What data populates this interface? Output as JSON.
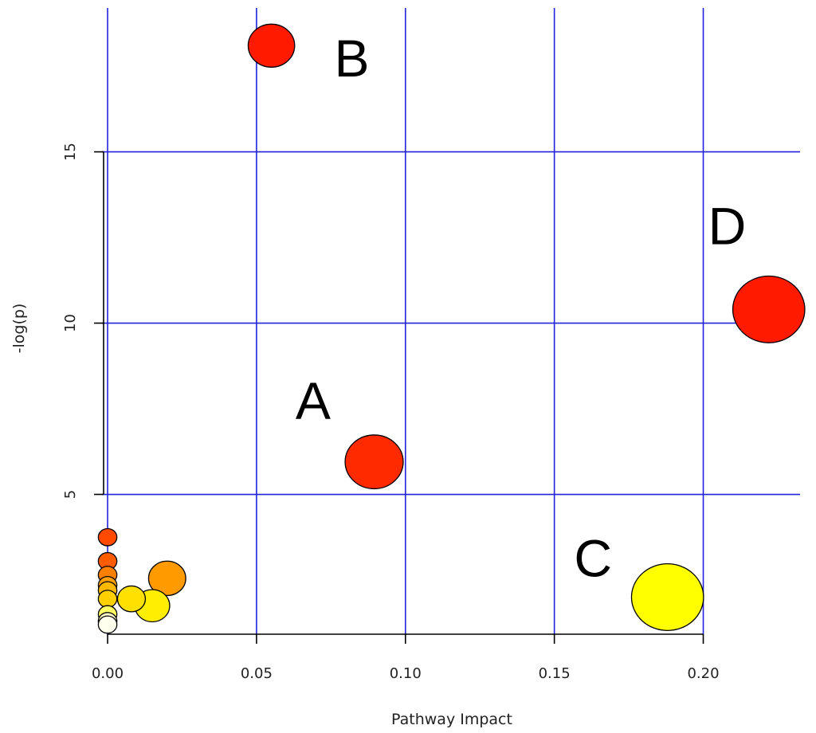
{
  "chart_data": {
    "type": "scatter",
    "title": "",
    "xlabel": "Pathway Impact",
    "ylabel": "-log(p)",
    "xlim": [
      -0.0075,
      0.2325
    ],
    "ylim": [
      0.5,
      19.2
    ],
    "x_ticks": [
      {
        "value": 0.0,
        "label": "0.00"
      },
      {
        "value": 0.05,
        "label": "0.05"
      },
      {
        "value": 0.1,
        "label": "0.10"
      },
      {
        "value": 0.15,
        "label": "0.15"
      },
      {
        "value": 0.2,
        "label": "0.20"
      }
    ],
    "y_ticks": [
      {
        "value": 5,
        "label": "5"
      },
      {
        "value": 10,
        "label": "10"
      },
      {
        "value": 15,
        "label": "15"
      }
    ],
    "grid": true,
    "grid_color": "#2222dd",
    "points": [
      {
        "x": 0.055,
        "y": 18.1,
        "size": 1.0,
        "color": "#ff1a00"
      },
      {
        "x": 0.222,
        "y": 10.4,
        "size": 1.55,
        "color": "#ff1a00"
      },
      {
        "x": 0.0895,
        "y": 5.95,
        "size": 1.25,
        "color": "#ff2a00"
      },
      {
        "x": 0.188,
        "y": 2.0,
        "size": 1.55,
        "color": "#ffff00"
      },
      {
        "x": 0.02,
        "y": 2.55,
        "size": 0.8,
        "color": "#ff9a00"
      },
      {
        "x": 0.015,
        "y": 1.75,
        "size": 0.75,
        "color": "#ffee00"
      },
      {
        "x": 0.008,
        "y": 1.95,
        "size": 0.6,
        "color": "#ffe000"
      },
      {
        "x": 0.0,
        "y": 3.75,
        "size": 0.4,
        "color": "#ff4a00"
      },
      {
        "x": 0.0,
        "y": 3.05,
        "size": 0.4,
        "color": "#ff5c00"
      },
      {
        "x": 0.0,
        "y": 2.65,
        "size": 0.4,
        "color": "#ff8000"
      },
      {
        "x": 0.0,
        "y": 2.35,
        "size": 0.4,
        "color": "#ffa000"
      },
      {
        "x": 0.0,
        "y": 2.2,
        "size": 0.4,
        "color": "#ffb800"
      },
      {
        "x": 0.0,
        "y": 1.95,
        "size": 0.4,
        "color": "#ffd000"
      },
      {
        "x": 0.0,
        "y": 1.5,
        "size": 0.4,
        "color": "#ffff66"
      },
      {
        "x": 0.0,
        "y": 1.3,
        "size": 0.4,
        "color": "#ffffcc"
      },
      {
        "x": 0.0,
        "y": 1.2,
        "size": 0.4,
        "color": "#ffffee"
      }
    ],
    "annotations": [
      {
        "text": "B",
        "x": 0.082,
        "y": 17.2
      },
      {
        "text": "D",
        "x": 0.208,
        "y": 12.3
      },
      {
        "text": "A",
        "x": 0.069,
        "y": 7.2
      },
      {
        "text": "C",
        "x": 0.163,
        "y": 2.6
      }
    ]
  }
}
